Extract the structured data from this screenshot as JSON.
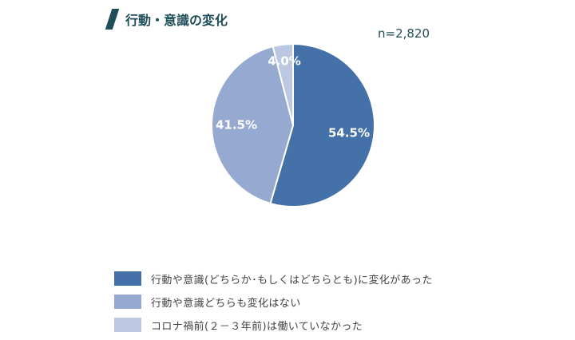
{
  "header": {
    "title": "行動・意識の変化",
    "sample_size": "n=2,820"
  },
  "chart_data": {
    "type": "pie",
    "title": "行動・意識の変化",
    "slices": [
      {
        "label": "行動や意識(どちらか･もしくはどちらとも)に変化があった",
        "value": 54.5,
        "display": "54.5%",
        "color": "#4472a8"
      },
      {
        "label": "行動や意識どちらも変化はない",
        "value": 41.5,
        "display": "41.5%",
        "color": "#95a9d1"
      },
      {
        "label": "コロナ禍前(２－３年前)は働いていなかった",
        "value": 4.0,
        "display": "4.0%",
        "color": "#bcc8e1"
      }
    ],
    "legend_position": "bottom-left"
  }
}
